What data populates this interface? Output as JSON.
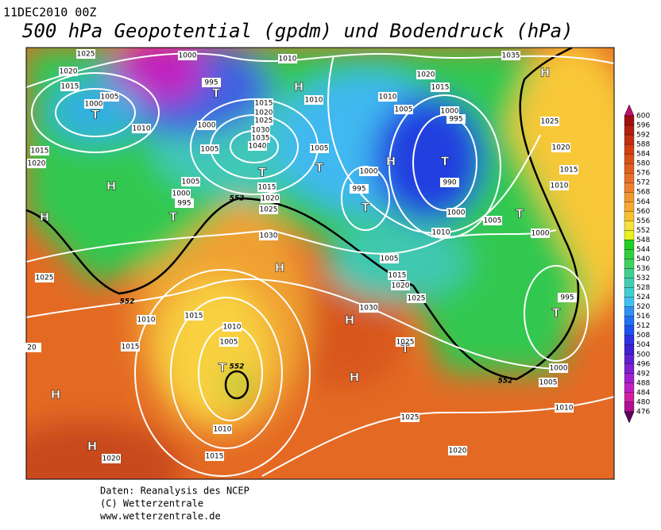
{
  "header": {
    "date": "11DEC2010 00Z",
    "title": "500 hPa Geopotential (gpdm) und Bodendruck (hPa)"
  },
  "colorbar": {
    "ticks": [
      600,
      596,
      592,
      588,
      584,
      580,
      576,
      572,
      568,
      564,
      560,
      556,
      552,
      548,
      544,
      540,
      536,
      532,
      528,
      524,
      520,
      516,
      512,
      508,
      504,
      500,
      496,
      492,
      488,
      484,
      480,
      476
    ]
  },
  "isobar_labels": [
    "1025",
    "1000",
    "1010",
    "1035",
    "1020",
    "995",
    "1020",
    "1015",
    "1005",
    "1015",
    "1010",
    "1010",
    "1000",
    "1015",
    "1020",
    "1025",
    "1030",
    "1035",
    "1040",
    "1005",
    "1000",
    "995",
    "1025",
    "1000",
    "1010",
    "1005",
    "1015",
    "1005",
    "1020",
    "1020",
    "1000",
    "1015",
    "1005",
    "990",
    "1010",
    "995",
    "1015",
    "1000",
    "995",
    "1020",
    "1025",
    "1000",
    "1005",
    "1010",
    "1000",
    "1030",
    "1005",
    "1015",
    "1025",
    "1020",
    "1025",
    "995",
    "1030",
    "1015",
    "1010",
    "1010",
    "1015",
    "1005",
    "1025",
    "1000",
    "1005",
    "1010",
    "1025",
    "1010",
    "1020",
    "1020",
    "1015",
    "20"
  ],
  "contour_labels": [
    "552",
    "552",
    "552",
    "552"
  ],
  "centers": [
    "T",
    "T",
    "H",
    "H",
    "H",
    "T",
    "T",
    "T",
    "H",
    "T",
    "T",
    "T",
    "H",
    "H",
    "H",
    "T",
    "H",
    "T",
    "H",
    "H",
    "T"
  ],
  "footer": [
    "Daten: Reanalysis des NCEP",
    "(C) Wetterzentrale",
    "www.wetterzentrale.de"
  ]
}
